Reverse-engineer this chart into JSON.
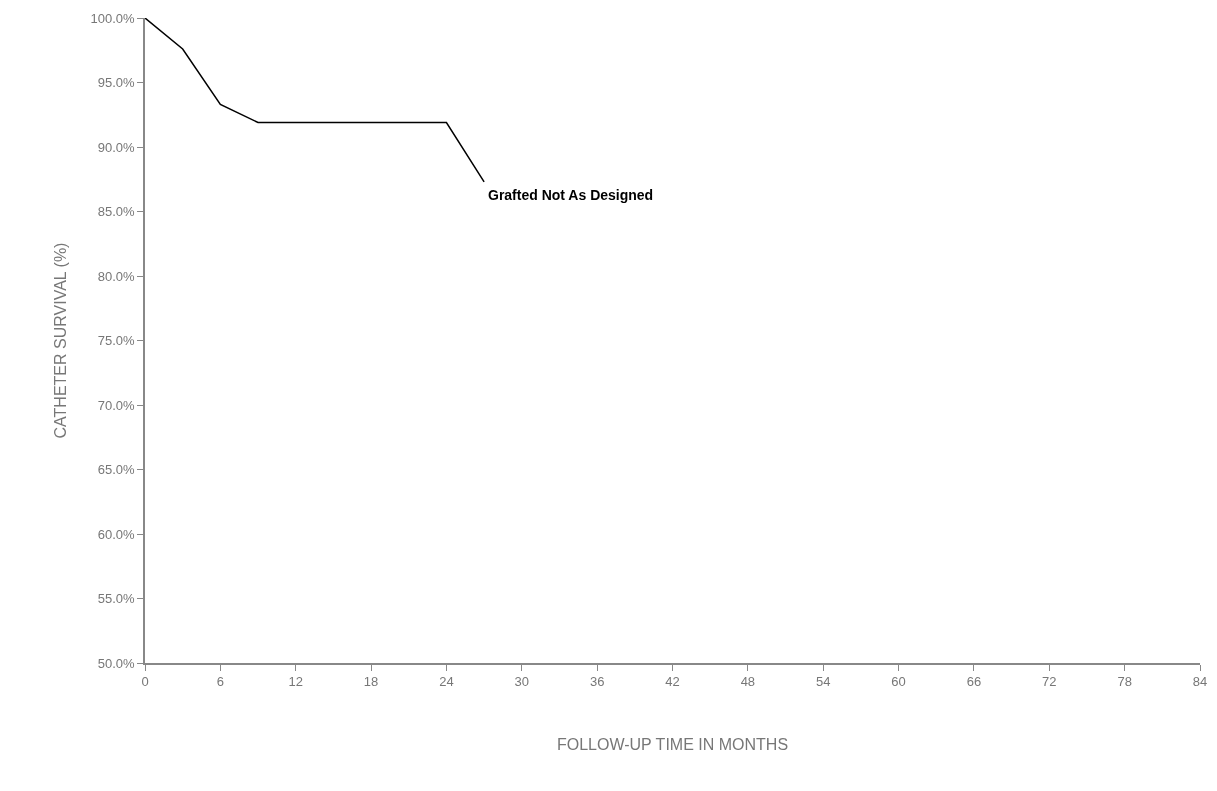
{
  "chart_data": {
    "type": "line",
    "xlabel": "FOLLOW-UP TIME IN MONTHS",
    "ylabel": "CATHETER SURVIVAL (%)",
    "x": [
      0,
      3,
      6,
      9,
      24,
      27
    ],
    "series": [
      {
        "name": "Grafted Not As Designed",
        "color": "#000000",
        "values": [
          100,
          97.6,
          93.3,
          91.9,
          91.9,
          87.3
        ]
      }
    ],
    "xlim": [
      0,
      84
    ],
    "xticks": [
      0,
      6,
      12,
      18,
      24,
      30,
      36,
      42,
      48,
      54,
      60,
      66,
      72,
      78,
      84
    ],
    "ylim": [
      50,
      100
    ],
    "yticks": [
      {
        "value": 50,
        "label": "50.0%"
      },
      {
        "value": 55,
        "label": "55.0%"
      },
      {
        "value": 60,
        "label": "60.0%"
      },
      {
        "value": 65,
        "label": "65.0%"
      },
      {
        "value": 70,
        "label": "70.0%"
      },
      {
        "value": 75,
        "label": "75.0%"
      },
      {
        "value": 80,
        "label": "80.0%"
      },
      {
        "value": 85,
        "label": "85.0%"
      },
      {
        "value": 90,
        "label": "90.0%"
      },
      {
        "value": 95,
        "label": "95.0%"
      },
      {
        "value": 100,
        "label": "100.0%"
      }
    ],
    "grid": false,
    "legend": false,
    "marker": "none",
    "line_style": "solid"
  }
}
